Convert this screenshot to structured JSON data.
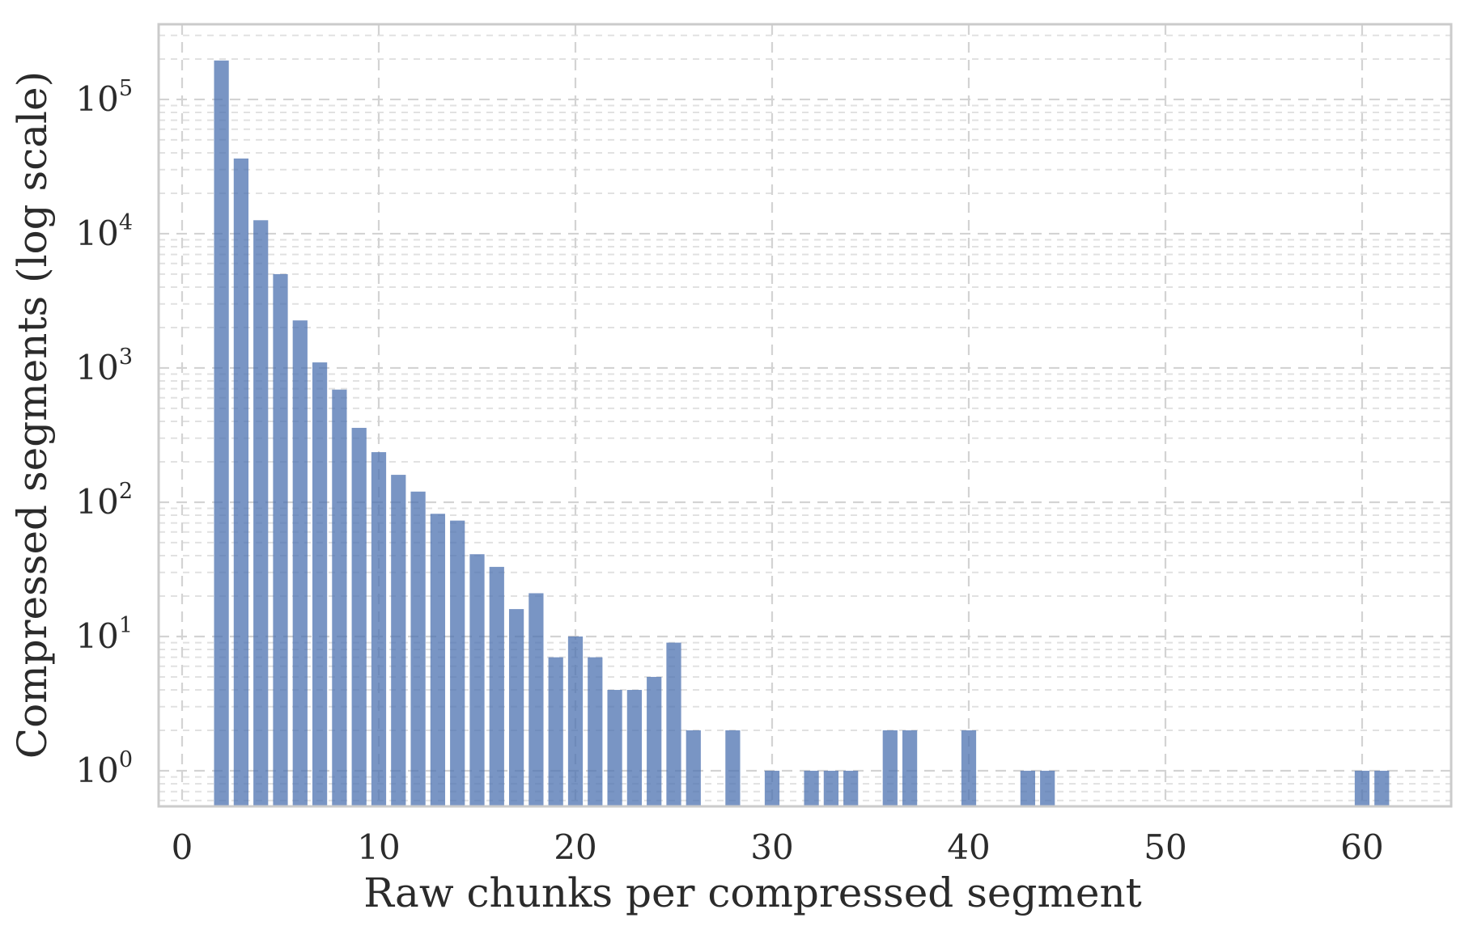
{
  "chart_data": {
    "type": "bar",
    "variant": "histogram",
    "title": "",
    "xlabel": "Raw chunks per compressed segment",
    "ylabel": "Compressed segments (log scale)",
    "x": [
      2,
      3,
      4,
      5,
      6,
      7,
      8,
      9,
      10,
      11,
      12,
      13,
      14,
      15,
      16,
      17,
      18,
      19,
      20,
      21,
      22,
      23,
      24,
      25,
      26,
      28,
      30,
      32,
      33,
      34,
      36,
      37,
      40,
      43,
      44,
      60,
      61
    ],
    "values": [
      195000,
      36300,
      12600,
      5000,
      2260,
      1100,
      690,
      358,
      236,
      160,
      120,
      82,
      73,
      41,
      33,
      16,
      21,
      7,
      10,
      7,
      4,
      4,
      5,
      9,
      2,
      2,
      1,
      1,
      1,
      1,
      2,
      2,
      2,
      1,
      1,
      1,
      1
    ],
    "bar_width": 0.75,
    "bar_color": "#4C72B0",
    "bar_alpha": 0.75,
    "yscale": "log",
    "xlim": [
      -1.193,
      64.527
    ],
    "ylim": [
      0.543,
      363000
    ],
    "xticks": [
      0,
      10,
      20,
      30,
      40,
      50,
      60
    ],
    "ytick_exponents": [
      0,
      1,
      2,
      3,
      4,
      5
    ],
    "ytick_base": "10",
    "grid": "major and minor, dashed, both axes major vertical / log minor horizontal",
    "legend": false,
    "colors": {
      "grid_major": "#d3d3d3",
      "grid_minor": "#e1e1e1",
      "spine": "#cbcbcb",
      "text": "#2b2b2b",
      "background": "#ffffff"
    }
  }
}
